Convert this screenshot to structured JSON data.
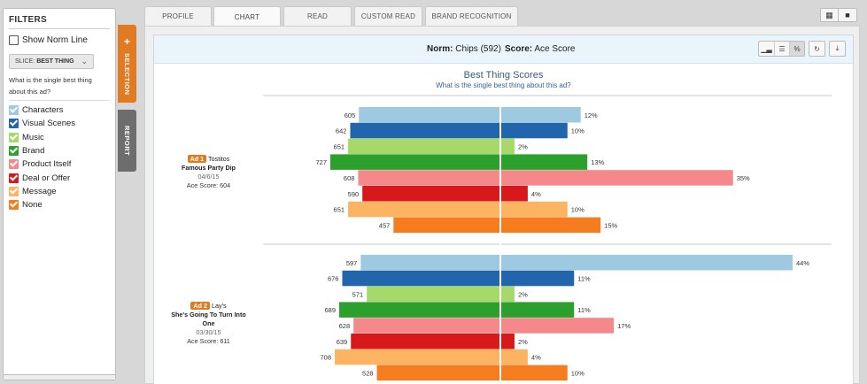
{
  "filters": {
    "title": "FILTERS",
    "show_norm_label": "Show Norm Line",
    "slice_prefix": "SLICE:",
    "slice_value": "BEST THING",
    "question": "What is the single best thing about this ad?",
    "legend": [
      {
        "label": "Characters",
        "color": "#9ecae1",
        "checked": true
      },
      {
        "label": "Visual Scenes",
        "color": "#2166ac",
        "checked": true
      },
      {
        "label": "Music",
        "color": "#a6d96a",
        "checked": true
      },
      {
        "label": "Brand",
        "color": "#2ca02c",
        "checked": true
      },
      {
        "label": "Product Itself",
        "color": "#f4888a",
        "checked": true
      },
      {
        "label": "Deal or Offer",
        "color": "#d7191c",
        "checked": true
      },
      {
        "label": "Message",
        "color": "#fdb462",
        "checked": true
      },
      {
        "label": "None",
        "color": "#f57c1f",
        "checked": true
      }
    ]
  },
  "side_tabs": {
    "selection": "SELECTION",
    "report": "REPORT",
    "plus": "+"
  },
  "tabs": [
    "PROFILE",
    "CHART",
    "READ",
    "CUSTOM READ",
    "BRAND RECOGNITION"
  ],
  "active_tab": "CHART",
  "view_toggle": {
    "grid_icon": "grid-icon",
    "list_icon": "square-icon"
  },
  "header": {
    "norm_label": "Norm:",
    "norm_value": "Chips (592)",
    "score_label": "Score:",
    "score_value": "Ace Score"
  },
  "chart_tools": [
    "bar-chart-icon",
    "list-icon",
    "percent-icon",
    "refresh-icon",
    "download-icon"
  ],
  "chart_data": {
    "type": "bar",
    "title": "Best Thing Scores",
    "subtitle": "What is the single best thing about this ad?",
    "categories": [
      "Characters",
      "Visual Scenes",
      "Music",
      "Brand",
      "Product Itself",
      "Deal or Offer",
      "Message",
      "None"
    ],
    "colors": [
      "#9ecae1",
      "#2166ac",
      "#a6d96a",
      "#2ca02c",
      "#f4888a",
      "#d7191c",
      "#fdb462",
      "#f57c1f"
    ],
    "ads": [
      {
        "badge": "Ad 1",
        "brand": "Tostitos",
        "title": "Famous Party Dip",
        "date": "04/6/15",
        "ace_score": "Ace Score: 604",
        "scores": [
          605,
          642,
          651,
          727,
          608,
          590,
          651,
          457
        ],
        "percents": [
          12,
          10,
          2,
          13,
          35,
          4,
          10,
          15
        ]
      },
      {
        "badge": "Ad 2",
        "brand": "Lay's",
        "title": "She's Going To Turn Into One",
        "date": "03/30/15",
        "ace_score": "Ace Score: 611",
        "scores": [
          597,
          676,
          571,
          689,
          628,
          639,
          708,
          528
        ],
        "percents": [
          44,
          11,
          2,
          11,
          17,
          2,
          4,
          10
        ]
      }
    ],
    "percent_suffix": "%"
  }
}
